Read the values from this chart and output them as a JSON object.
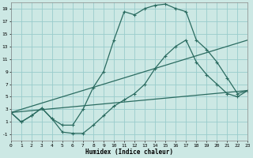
{
  "xlabel": "Humidex (Indice chaleur)",
  "bg_color": "#cce8e4",
  "grid_color": "#99cccc",
  "line_color": "#2a6b60",
  "xlim": [
    0,
    23
  ],
  "ylim": [
    -2,
    20
  ],
  "xticks": [
    0,
    1,
    2,
    3,
    4,
    5,
    6,
    7,
    8,
    9,
    10,
    11,
    12,
    13,
    14,
    15,
    16,
    17,
    18,
    19,
    20,
    21,
    22,
    23
  ],
  "yticks": [
    -1,
    1,
    3,
    5,
    7,
    9,
    11,
    13,
    15,
    17,
    19
  ],
  "line1_x": [
    0,
    1,
    2,
    3,
    4,
    5,
    6,
    7,
    8,
    9,
    10,
    11,
    12,
    13,
    14,
    15,
    16,
    17,
    18,
    19,
    20,
    21,
    22,
    23
  ],
  "line1_y": [
    2.5,
    1.0,
    2.0,
    3.2,
    1.5,
    0.5,
    0.5,
    3.0,
    6.5,
    9.0,
    14.0,
    18.5,
    18.0,
    19.0,
    19.5,
    19.7,
    19.0,
    18.5,
    14.0,
    12.5,
    10.5,
    8.0,
    5.5,
    6.0
  ],
  "line2_x": [
    0,
    1,
    2,
    3,
    4,
    5,
    6,
    7,
    8,
    9,
    10,
    11,
    12,
    13,
    14,
    15,
    16,
    17,
    18,
    19,
    20,
    21,
    22,
    23
  ],
  "line2_y": [
    2.5,
    1.0,
    2.0,
    3.2,
    1.5,
    -0.6,
    -0.8,
    -0.8,
    0.5,
    2.0,
    3.5,
    4.5,
    5.5,
    7.0,
    9.5,
    11.5,
    13.0,
    14.0,
    10.5,
    8.5,
    7.0,
    5.5,
    5.0,
    6.0
  ],
  "line3_x": [
    0,
    23
  ],
  "line3_y": [
    2.5,
    14.0
  ],
  "line4_x": [
    0,
    23
  ],
  "line4_y": [
    2.5,
    6.0
  ]
}
